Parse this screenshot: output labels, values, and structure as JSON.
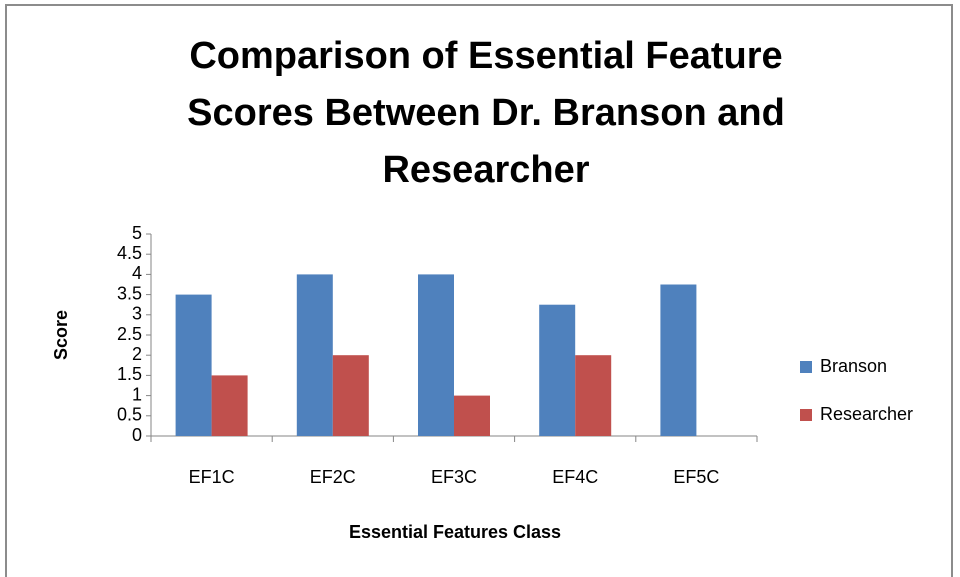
{
  "chart_data": {
    "type": "bar",
    "title": "Comparison of Essential Feature Scores Between Dr. Branson and Researcher",
    "x_label": "Essential Features Class",
    "y_label": "Score",
    "categories": [
      "EF1C",
      "EF2C",
      "EF3C",
      "EF4C",
      "EF5C"
    ],
    "series": [
      {
        "name": "Branson",
        "color": "#4f81bd",
        "values": [
          3.5,
          4,
          4,
          3.25,
          3.75
        ]
      },
      {
        "name": "Researcher",
        "color": "#c0504d",
        "values": [
          1.5,
          2,
          1,
          2,
          0
        ]
      }
    ],
    "ylim": [
      0,
      5
    ],
    "yticks": [
      0,
      0.5,
      1,
      1.5,
      2,
      2.5,
      3,
      3.5,
      4,
      4.5,
      5
    ],
    "grid": false,
    "legend": "right"
  }
}
